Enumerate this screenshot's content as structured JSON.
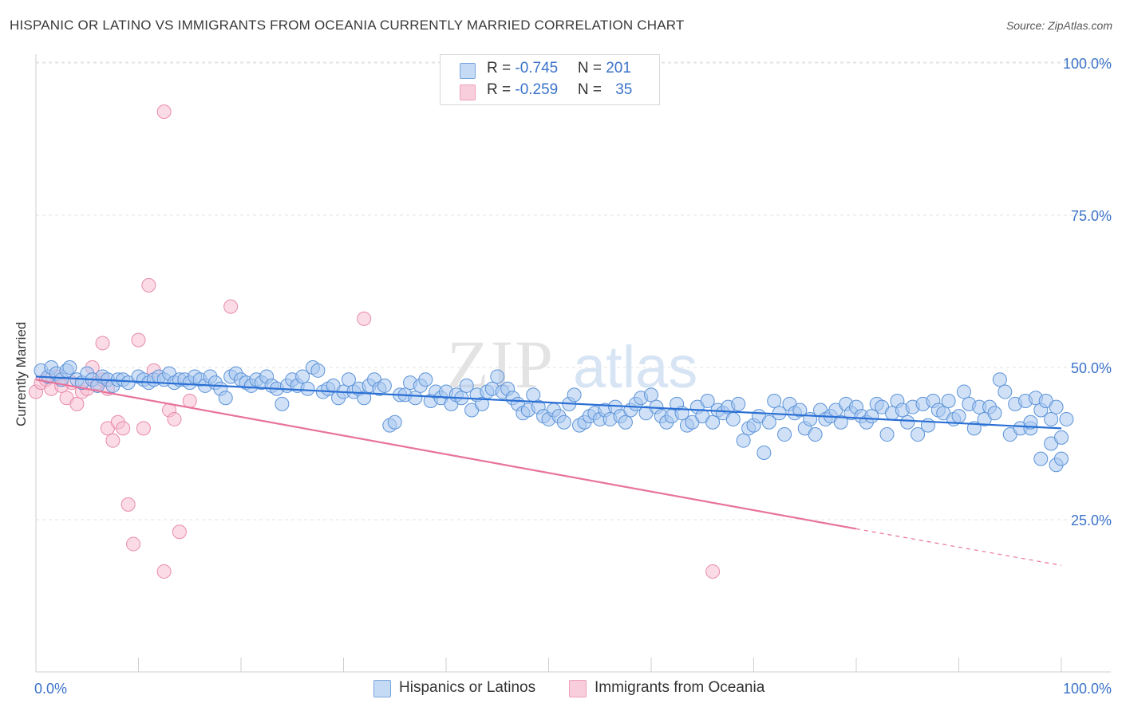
{
  "header": {
    "title": "HISPANIC OR LATINO VS IMMIGRANTS FROM OCEANIA CURRENTLY MARRIED CORRELATION CHART",
    "source": "Source: ZipAtlas.com"
  },
  "watermark": {
    "text_zip": "ZIP",
    "text_atlas": "atlas"
  },
  "legend": {
    "rows": [
      {
        "r_label": "R = ",
        "r_value": "-0.745",
        "n_label": "N = ",
        "n_value": "201",
        "color": "#a9c8f0"
      },
      {
        "r_label": "R = ",
        "r_value": "-0.259",
        "n_label": "N = ",
        "n_value": "35",
        "color": "#f5b8cc"
      }
    ]
  },
  "bottom_legend": {
    "series1": "Hispanics or Latinos",
    "series2": "Immigrants from Oceania"
  },
  "colors": {
    "blue_fill": "#a9c8f0",
    "blue_stroke": "#5b93d8",
    "blue_line": "#2a6fd4",
    "pink_fill": "#f7c0d2",
    "pink_stroke": "#e88aaa",
    "pink_line": "#e8739a",
    "axis_label": "#3b73c9"
  },
  "chart_data": {
    "type": "scatter",
    "title": "HISPANIC OR LATINO VS IMMIGRANTS FROM OCEANIA CURRENTLY MARRIED CORRELATION CHART",
    "xlabel": "",
    "ylabel": "Currently Married",
    "xlim": [
      0,
      100
    ],
    "ylim": [
      0,
      105
    ],
    "x_tick_labels": [
      "0.0%",
      "100.0%"
    ],
    "y_ticks": [
      25,
      50,
      75,
      100
    ],
    "y_tick_labels": [
      "25.0%",
      "50.0%",
      "75.0%",
      "100.0%"
    ],
    "grid": true,
    "legend_position": "top-center",
    "series": [
      {
        "name": "Hispanics or Latinos",
        "r": -0.745,
        "n": 201,
        "trend": {
          "x": [
            0,
            100
          ],
          "y": [
            48.5,
            40.0
          ]
        },
        "points": [
          [
            0.5,
            49.5
          ],
          [
            1.2,
            48.5
          ],
          [
            1.5,
            50.0
          ],
          [
            2.0,
            49.0
          ],
          [
            2.5,
            48.0
          ],
          [
            3.0,
            49.5
          ],
          [
            3.3,
            50.0
          ],
          [
            4.0,
            48.0
          ],
          [
            4.5,
            47.5
          ],
          [
            5.0,
            49.0
          ],
          [
            5.5,
            48.0
          ],
          [
            6.0,
            47.0
          ],
          [
            6.5,
            48.5
          ],
          [
            7.0,
            48.0
          ],
          [
            7.5,
            47.0
          ],
          [
            8.0,
            48.0
          ],
          [
            8.5,
            48.0
          ],
          [
            9.0,
            47.5
          ],
          [
            10.0,
            48.5
          ],
          [
            10.5,
            48.0
          ],
          [
            11.0,
            47.5
          ],
          [
            11.5,
            48.0
          ],
          [
            12.0,
            48.5
          ],
          [
            12.5,
            48.0
          ],
          [
            13.0,
            49.0
          ],
          [
            13.5,
            47.5
          ],
          [
            14.0,
            48.0
          ],
          [
            14.5,
            48.0
          ],
          [
            15.0,
            47.5
          ],
          [
            15.5,
            48.5
          ],
          [
            16.0,
            48.0
          ],
          [
            16.5,
            47.0
          ],
          [
            17.0,
            48.5
          ],
          [
            17.5,
            47.5
          ],
          [
            18.0,
            46.5
          ],
          [
            18.5,
            45.0
          ],
          [
            19.0,
            48.5
          ],
          [
            19.5,
            49.0
          ],
          [
            20.0,
            48.0
          ],
          [
            20.5,
            47.5
          ],
          [
            21.0,
            47.0
          ],
          [
            21.5,
            48.0
          ],
          [
            22.0,
            47.5
          ],
          [
            22.5,
            48.5
          ],
          [
            23.0,
            47.0
          ],
          [
            23.5,
            46.5
          ],
          [
            24.0,
            44.0
          ],
          [
            24.5,
            47.0
          ],
          [
            25.0,
            48.0
          ],
          [
            25.5,
            47.0
          ],
          [
            26.0,
            48.5
          ],
          [
            26.5,
            46.5
          ],
          [
            27.0,
            50.0
          ],
          [
            27.5,
            49.5
          ],
          [
            28.0,
            46.0
          ],
          [
            28.5,
            46.5
          ],
          [
            29.0,
            47.0
          ],
          [
            29.5,
            45.0
          ],
          [
            30.0,
            46.0
          ],
          [
            30.5,
            48.0
          ],
          [
            31.0,
            46.0
          ],
          [
            31.5,
            46.5
          ],
          [
            32.0,
            45.0
          ],
          [
            32.5,
            47.0
          ],
          [
            33.0,
            48.0
          ],
          [
            33.5,
            46.5
          ],
          [
            34.0,
            47.0
          ],
          [
            34.5,
            40.5
          ],
          [
            35.0,
            41.0
          ],
          [
            35.5,
            45.5
          ],
          [
            36.0,
            45.5
          ],
          [
            36.5,
            47.5
          ],
          [
            37.0,
            45.0
          ],
          [
            37.5,
            47.0
          ],
          [
            38.0,
            48.0
          ],
          [
            38.5,
            44.5
          ],
          [
            39.0,
            46.0
          ],
          [
            39.5,
            45.0
          ],
          [
            40.0,
            46.0
          ],
          [
            40.5,
            44.0
          ],
          [
            41.0,
            45.5
          ],
          [
            41.5,
            45.0
          ],
          [
            42.0,
            47.0
          ],
          [
            42.5,
            43.0
          ],
          [
            43.0,
            45.5
          ],
          [
            43.5,
            44.0
          ],
          [
            44.0,
            46.0
          ],
          [
            44.5,
            46.5
          ],
          [
            45.0,
            48.5
          ],
          [
            45.5,
            46.0
          ],
          [
            46.0,
            46.5
          ],
          [
            46.5,
            45.0
          ],
          [
            47.0,
            44.0
          ],
          [
            47.5,
            42.5
          ],
          [
            48.0,
            43.0
          ],
          [
            48.5,
            45.5
          ],
          [
            49.0,
            43.5
          ],
          [
            49.5,
            42.0
          ],
          [
            50.0,
            41.5
          ],
          [
            50.5,
            43.0
          ],
          [
            51.0,
            42.0
          ],
          [
            51.5,
            41.0
          ],
          [
            52.0,
            44.0
          ],
          [
            52.5,
            45.5
          ],
          [
            53.0,
            40.5
          ],
          [
            53.5,
            41.0
          ],
          [
            54.0,
            42.0
          ],
          [
            54.5,
            42.5
          ],
          [
            55.0,
            41.5
          ],
          [
            55.5,
            43.0
          ],
          [
            56.0,
            41.5
          ],
          [
            56.5,
            43.5
          ],
          [
            57.0,
            42.0
          ],
          [
            57.5,
            41.0
          ],
          [
            58.0,
            43.0
          ],
          [
            58.5,
            44.0
          ],
          [
            59.0,
            45.0
          ],
          [
            59.5,
            42.5
          ],
          [
            60.0,
            45.5
          ],
          [
            60.5,
            43.5
          ],
          [
            61.0,
            42.0
          ],
          [
            61.5,
            41.0
          ],
          [
            62.0,
            42.0
          ],
          [
            62.5,
            44.0
          ],
          [
            63.0,
            42.5
          ],
          [
            63.5,
            40.5
          ],
          [
            64.0,
            41.0
          ],
          [
            64.5,
            43.5
          ],
          [
            65.0,
            42.0
          ],
          [
            65.5,
            44.5
          ],
          [
            66.0,
            41.0
          ],
          [
            66.5,
            43.0
          ],
          [
            67.0,
            42.5
          ],
          [
            67.5,
            43.5
          ],
          [
            68.0,
            41.5
          ],
          [
            68.5,
            44.0
          ],
          [
            69.0,
            38.0
          ],
          [
            69.5,
            40.0
          ],
          [
            70.0,
            40.5
          ],
          [
            70.5,
            42.0
          ],
          [
            71.0,
            36.0
          ],
          [
            71.5,
            41.0
          ],
          [
            72.0,
            44.5
          ],
          [
            72.5,
            42.5
          ],
          [
            73.0,
            39.0
          ],
          [
            73.5,
            44.0
          ],
          [
            74.0,
            42.5
          ],
          [
            74.5,
            43.0
          ],
          [
            75.0,
            40.0
          ],
          [
            75.5,
            41.5
          ],
          [
            76.0,
            39.0
          ],
          [
            76.5,
            43.0
          ],
          [
            77.0,
            41.5
          ],
          [
            77.5,
            42.0
          ],
          [
            78.0,
            43.0
          ],
          [
            78.5,
            41.0
          ],
          [
            79.0,
            44.0
          ],
          [
            79.5,
            42.5
          ],
          [
            80.0,
            43.5
          ],
          [
            80.5,
            42.0
          ],
          [
            81.0,
            41.0
          ],
          [
            81.5,
            42.0
          ],
          [
            82.0,
            44.0
          ],
          [
            82.5,
            43.5
          ],
          [
            83.0,
            39.0
          ],
          [
            83.5,
            42.5
          ],
          [
            84.0,
            44.5
          ],
          [
            84.5,
            43.0
          ],
          [
            85.0,
            41.0
          ],
          [
            85.5,
            43.5
          ],
          [
            86.0,
            39.0
          ],
          [
            86.5,
            44.0
          ],
          [
            87.0,
            40.5
          ],
          [
            87.5,
            44.5
          ],
          [
            88.0,
            43.0
          ],
          [
            88.5,
            42.5
          ],
          [
            89.0,
            44.5
          ],
          [
            89.5,
            41.5
          ],
          [
            90.0,
            42.0
          ],
          [
            90.5,
            46.0
          ],
          [
            91.0,
            44.0
          ],
          [
            91.5,
            40.0
          ],
          [
            92.0,
            43.5
          ],
          [
            92.5,
            41.5
          ],
          [
            93.0,
            43.5
          ],
          [
            93.5,
            42.5
          ],
          [
            94.0,
            48.0
          ],
          [
            94.5,
            46.0
          ],
          [
            95.0,
            39.0
          ],
          [
            95.5,
            44.0
          ],
          [
            96.0,
            40.0
          ],
          [
            96.5,
            44.5
          ],
          [
            97.0,
            40.0
          ],
          [
            97.5,
            45.0
          ],
          [
            98.0,
            43.0
          ],
          [
            98.5,
            44.5
          ],
          [
            99.0,
            41.5
          ],
          [
            99.5,
            43.5
          ],
          [
            99.0,
            37.5
          ],
          [
            100.0,
            38.5
          ],
          [
            98.0,
            35.0
          ],
          [
            99.5,
            34.0
          ],
          [
            100.0,
            35.0
          ],
          [
            100.5,
            41.5
          ],
          [
            97.0,
            41.0
          ]
        ]
      },
      {
        "name": "Immigrants from Oceania",
        "r": -0.259,
        "n": 35,
        "trend": {
          "x": [
            0,
            80
          ],
          "y": [
            48.0,
            23.5
          ]
        },
        "trend_dashed": {
          "x": [
            80,
            100
          ],
          "y": [
            23.5,
            17.5
          ]
        },
        "points": [
          [
            0.0,
            46.0
          ],
          [
            0.5,
            47.5
          ],
          [
            1.0,
            48.0
          ],
          [
            1.5,
            46.5
          ],
          [
            2.0,
            48.5
          ],
          [
            2.5,
            47.0
          ],
          [
            3.0,
            45.0
          ],
          [
            3.5,
            47.5
          ],
          [
            4.0,
            44.0
          ],
          [
            4.5,
            46.0
          ],
          [
            5.0,
            46.5
          ],
          [
            5.5,
            50.0
          ],
          [
            6.0,
            47.5
          ],
          [
            6.5,
            48.0
          ],
          [
            7.0,
            46.5
          ],
          [
            6.5,
            54.0
          ],
          [
            7.0,
            40.0
          ],
          [
            7.5,
            38.0
          ],
          [
            8.0,
            41.0
          ],
          [
            8.5,
            40.0
          ],
          [
            9.0,
            27.5
          ],
          [
            9.5,
            21.0
          ],
          [
            10.0,
            54.5
          ],
          [
            10.5,
            40.0
          ],
          [
            11.0,
            63.5
          ],
          [
            11.5,
            49.5
          ],
          [
            12.5,
            16.5
          ],
          [
            12.5,
            92.0
          ],
          [
            13.0,
            43.0
          ],
          [
            13.5,
            41.5
          ],
          [
            14.0,
            23.0
          ],
          [
            15.0,
            44.5
          ],
          [
            19.0,
            60.0
          ],
          [
            32.0,
            58.0
          ],
          [
            66.0,
            16.5
          ]
        ]
      }
    ]
  }
}
